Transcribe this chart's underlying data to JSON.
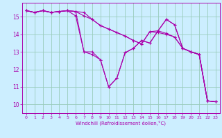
{
  "xlabel": "Windchill (Refroidissement éolien,°C)",
  "bg_color": "#cceeff",
  "line_color": "#aa00aa",
  "grid_color": "#99ccbb",
  "xlim": [
    -0.5,
    23.5
  ],
  "ylim": [
    9.5,
    15.8
  ],
  "yticks": [
    10,
    11,
    12,
    13,
    14,
    15
  ],
  "xticks": [
    0,
    1,
    2,
    3,
    4,
    5,
    6,
    7,
    8,
    9,
    10,
    11,
    12,
    13,
    14,
    15,
    16,
    17,
    18,
    19,
    20,
    21,
    22,
    23
  ],
  "lines": [
    {
      "x": [
        0,
        1,
        2,
        3,
        4,
        5,
        6,
        7,
        8,
        9,
        10,
        11,
        12,
        13,
        14,
        15,
        16,
        17,
        18,
        19,
        20,
        21,
        22,
        23
      ],
      "y": [
        15.35,
        15.25,
        15.35,
        15.25,
        15.3,
        15.35,
        15.3,
        13.0,
        13.0,
        12.55,
        11.0,
        11.5,
        12.95,
        13.2,
        13.65,
        13.5,
        14.2,
        14.85,
        14.55,
        13.2,
        13.0,
        12.85,
        10.2,
        10.15
      ]
    },
    {
      "x": [
        0,
        1,
        2,
        3,
        4,
        5,
        6,
        7,
        8,
        9,
        10,
        11,
        12,
        13,
        14,
        15,
        16,
        17,
        18,
        19,
        20,
        21,
        22,
        23
      ],
      "y": [
        15.35,
        15.25,
        15.35,
        15.25,
        15.3,
        15.35,
        15.05,
        13.0,
        12.85,
        12.55,
        11.0,
        11.5,
        12.95,
        13.2,
        13.65,
        13.5,
        14.2,
        14.85,
        14.55,
        13.2,
        13.0,
        12.85,
        10.2,
        10.15
      ]
    },
    {
      "x": [
        0,
        1,
        2,
        3,
        4,
        5,
        6,
        7,
        8,
        9,
        10,
        11,
        12,
        13,
        14,
        15,
        16,
        17,
        18,
        19,
        20,
        21,
        22,
        23
      ],
      "y": [
        15.35,
        15.25,
        15.35,
        15.25,
        15.3,
        15.35,
        15.3,
        15.05,
        14.85,
        14.5,
        14.3,
        14.1,
        13.9,
        13.65,
        13.45,
        14.15,
        14.1,
        14.0,
        13.85,
        13.2,
        13.0,
        12.85,
        10.2,
        10.15
      ]
    },
    {
      "x": [
        0,
        1,
        2,
        3,
        4,
        5,
        6,
        7,
        8,
        9,
        10,
        11,
        12,
        13,
        14,
        15,
        16,
        17,
        18,
        19,
        20,
        21,
        22,
        23
      ],
      "y": [
        15.35,
        15.25,
        15.35,
        15.25,
        15.3,
        15.35,
        15.3,
        15.25,
        14.85,
        14.5,
        14.3,
        14.1,
        13.9,
        13.65,
        13.45,
        14.15,
        14.2,
        14.05,
        13.85,
        13.2,
        13.0,
        12.85,
        10.2,
        10.15
      ]
    }
  ]
}
